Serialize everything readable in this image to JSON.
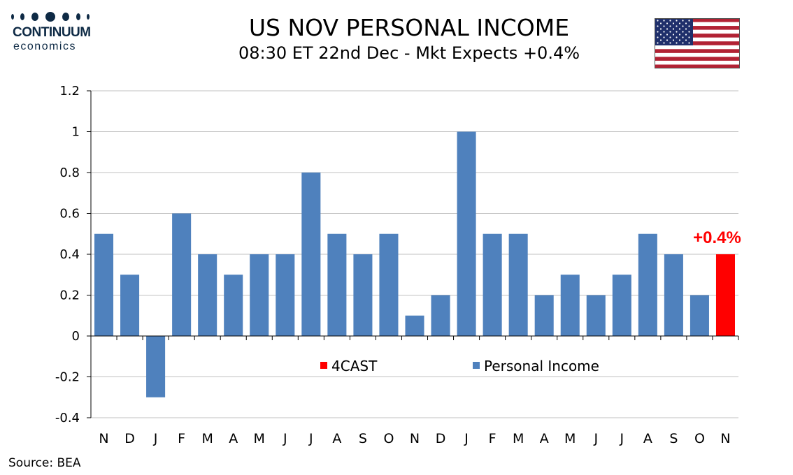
{
  "header": {
    "logo_word1": "CONTINUUM",
    "logo_word2": "economics",
    "flag_icon": "us-flag-icon"
  },
  "footer": {
    "source": "Source: BEA"
  },
  "colors": {
    "series": "#4f81bd",
    "forecast": "#ff0000",
    "grid": "#c0c0c0",
    "logo": "#0e2a45"
  },
  "chart_data": {
    "type": "bar",
    "title": "US NOV PERSONAL INCOME",
    "subtitle": "08:30 ET 22nd Dec - Mkt Expects +0.4%",
    "categories": [
      "N",
      "D",
      "J",
      "F",
      "M",
      "A",
      "M",
      "J",
      "J",
      "A",
      "S",
      "O",
      "N",
      "D",
      "J",
      "F",
      "M",
      "A",
      "M",
      "J",
      "J",
      "A",
      "S",
      "O",
      "N"
    ],
    "series": [
      {
        "name": "Personal Income",
        "color": "#4f81bd",
        "values": [
          0.5,
          0.3,
          -0.3,
          0.6,
          0.4,
          0.3,
          0.4,
          0.4,
          0.8,
          0.5,
          0.4,
          0.5,
          0.1,
          0.2,
          1.0,
          0.5,
          0.5,
          0.2,
          0.3,
          0.2,
          0.3,
          0.5,
          0.4,
          0.2,
          null
        ]
      },
      {
        "name": "4CAST",
        "color": "#ff0000",
        "values": [
          null,
          null,
          null,
          null,
          null,
          null,
          null,
          null,
          null,
          null,
          null,
          null,
          null,
          null,
          null,
          null,
          null,
          null,
          null,
          null,
          null,
          null,
          null,
          null,
          0.4
        ]
      }
    ],
    "ylim": [
      -0.4,
      1.2
    ],
    "yticks": [
      "-0.4",
      "-0.2",
      "0",
      "0.2",
      "0.4",
      "0.6",
      "0.8",
      "1",
      "1.2"
    ],
    "grid": true,
    "legend": {
      "placement": "inside-center",
      "entries": [
        "4CAST",
        "Personal Income"
      ]
    },
    "annotation": {
      "text": "+0.4%",
      "category_index": 24,
      "value": 0.4,
      "color": "#ff0000"
    },
    "xlabel": "",
    "ylabel": ""
  }
}
